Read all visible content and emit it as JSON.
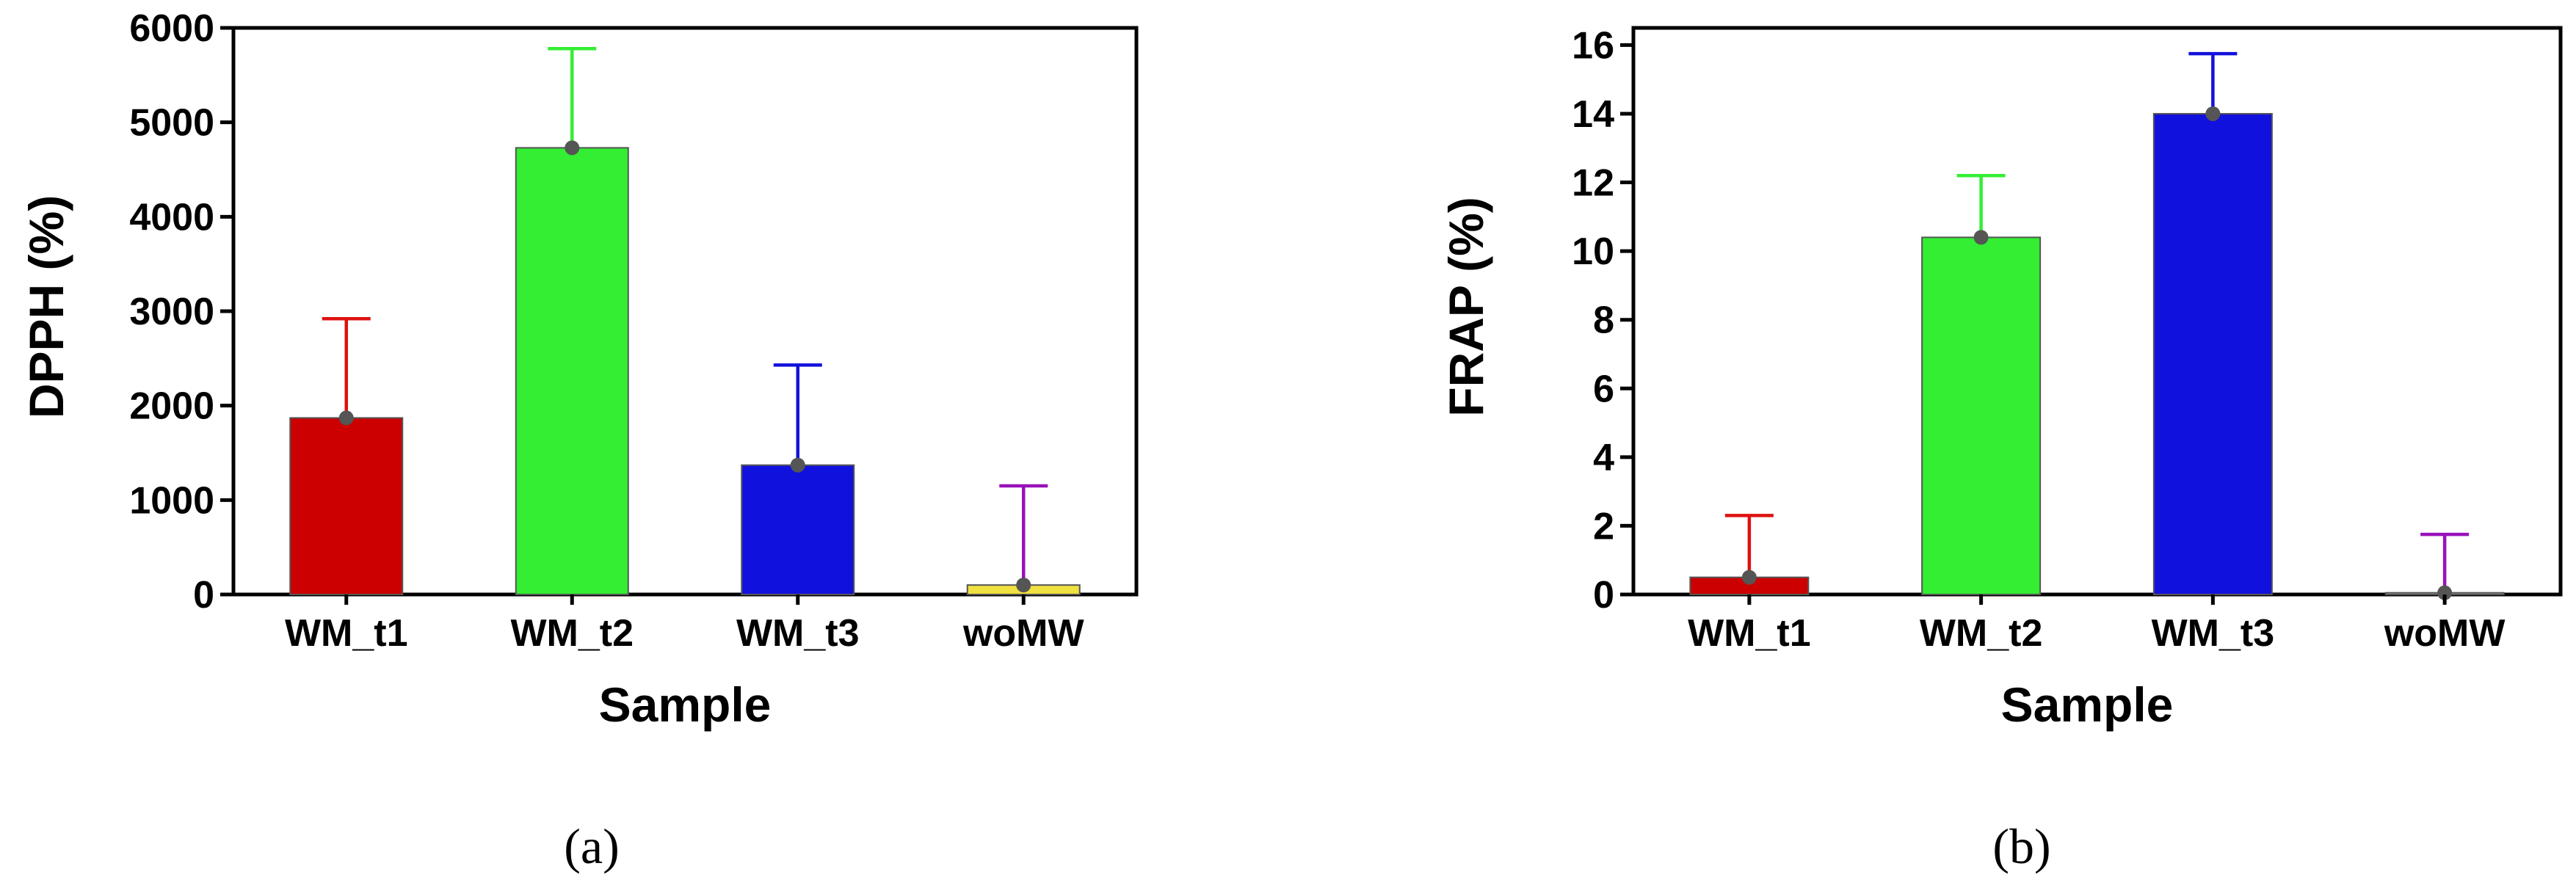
{
  "chart_data": [
    {
      "type": "bar",
      "panel_label": "(a)",
      "xlabel": "Sample",
      "ylabel": "DPPH (%)",
      "ylim": [
        0,
        6000
      ],
      "yticks": [
        0,
        1000,
        2000,
        3000,
        4000,
        5000,
        6000
      ],
      "categories": [
        "WM_t1",
        "WM_t2",
        "WM_t3",
        "woMW"
      ],
      "values": [
        1870,
        4730,
        1370,
        100
      ],
      "error_upper": [
        2920,
        5780,
        2430,
        1150
      ],
      "colors": [
        "#cc0000",
        "#33ee33",
        "#1111dd",
        "#f0e040"
      ],
      "error_colors": [
        "#dd1111",
        "#33ee33",
        "#1111dd",
        "#9911bb"
      ]
    },
    {
      "type": "bar",
      "panel_label": "(b)",
      "xlabel": "Sample",
      "ylabel": "FRAP (%)",
      "ylim": [
        0,
        16.5
      ],
      "yticks": [
        0,
        2,
        4,
        6,
        8,
        10,
        12,
        14,
        16
      ],
      "categories": [
        "WM_t1",
        "WM_t2",
        "WM_t3",
        "woMW"
      ],
      "values": [
        0.5,
        10.4,
        14.0,
        0.05
      ],
      "error_upper": [
        2.3,
        12.2,
        15.75,
        1.75
      ],
      "colors": [
        "#cc0000",
        "#33ee33",
        "#1111dd",
        "#cccccc"
      ],
      "error_colors": [
        "#dd1111",
        "#33ee33",
        "#1111dd",
        "#9911bb"
      ]
    }
  ]
}
